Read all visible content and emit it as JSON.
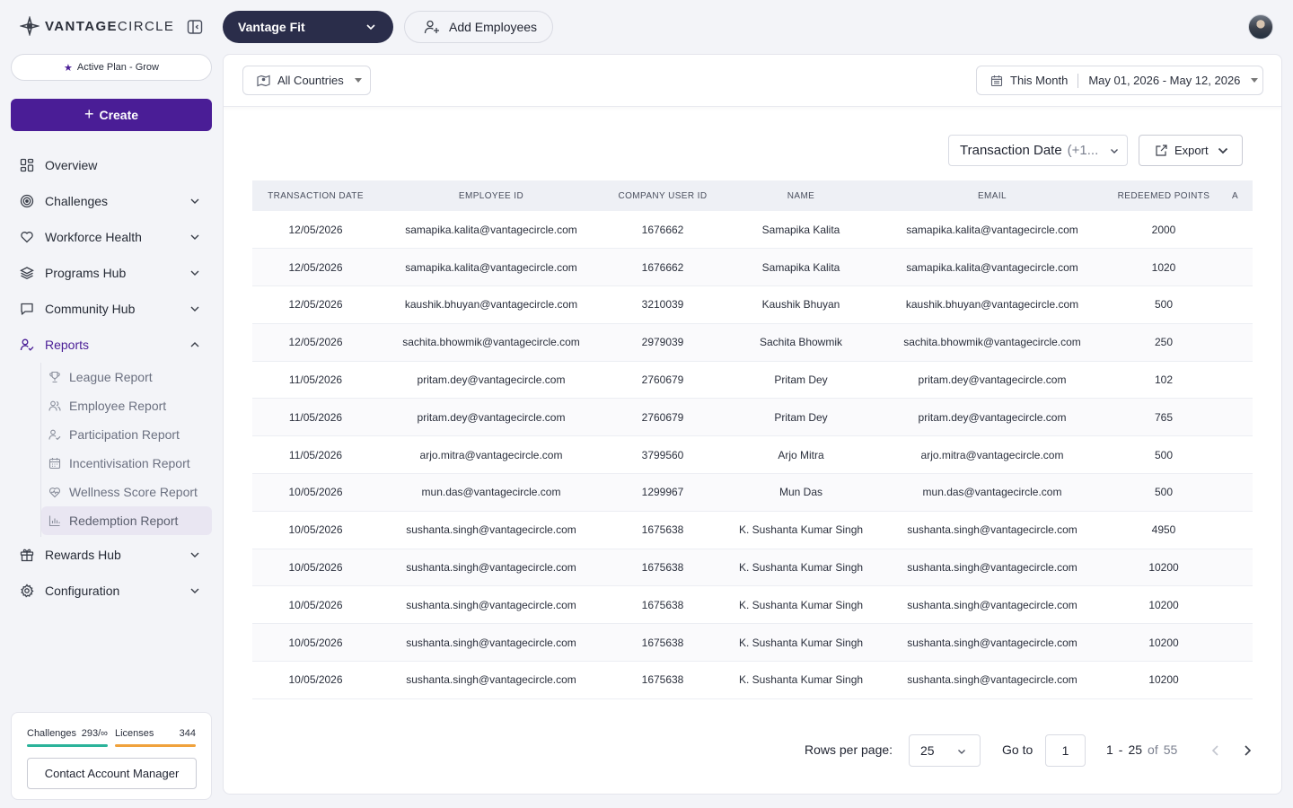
{
  "brand": {
    "logo_text_bold": "VANTAGE",
    "logo_text_light": "CIRCLE"
  },
  "sidebar": {
    "plan_label": "Active Plan - Grow",
    "create_label": "Create",
    "nav": [
      {
        "label": "Overview",
        "icon": "grid-icon"
      },
      {
        "label": "Challenges",
        "icon": "target-icon"
      },
      {
        "label": "Workforce Health",
        "icon": "heart-icon"
      },
      {
        "label": "Programs Hub",
        "icon": "layers-icon"
      },
      {
        "label": "Community Hub",
        "icon": "chat-icon"
      },
      {
        "label": "Reports",
        "icon": "user-check-icon"
      },
      {
        "label": "Rewards Hub",
        "icon": "gift-icon"
      },
      {
        "label": "Configuration",
        "icon": "gear-icon"
      }
    ],
    "reports_sub": [
      {
        "label": "League Report",
        "icon": "trophy-icon"
      },
      {
        "label": "Employee Report",
        "icon": "users-icon"
      },
      {
        "label": "Participation Report",
        "icon": "user-check-icon"
      },
      {
        "label": "Incentivisation Report",
        "icon": "calendar-icon"
      },
      {
        "label": "Wellness Score Report",
        "icon": "heart-pulse-icon"
      },
      {
        "label": "Redemption Report",
        "icon": "bar-chart-icon"
      }
    ],
    "usage": {
      "challenges_label": "Challenges",
      "challenges_value": "293/∞",
      "challenges_color": "#2bb39a",
      "licenses_label": "Licenses",
      "licenses_value": "344",
      "licenses_color": "#f0a23c"
    },
    "contact_label": "Contact Account Manager"
  },
  "topbar": {
    "app_name": "Vantage Fit",
    "add_employees_label": "Add Employees"
  },
  "filters": {
    "country_label": "All Countries",
    "period_label": "This Month",
    "date_range": "May 01, 2026 - May 12, 2026"
  },
  "toolbar": {
    "columns_label": "Transaction Date",
    "columns_extra": "(+1...",
    "export_label": "Export"
  },
  "table": {
    "columns": [
      "TRANSACTION DATE",
      "EMPLOYEE ID",
      "COMPANY USER ID",
      "NAME",
      "EMAIL",
      "REDEEMED POINTS",
      "A"
    ],
    "rows": [
      [
        "12/05/2026",
        "samapika.kalita@vantagecircle.com",
        "1676662",
        "Samapika Kalita",
        "samapika.kalita@vantagecircle.com",
        "2000"
      ],
      [
        "12/05/2026",
        "samapika.kalita@vantagecircle.com",
        "1676662",
        "Samapika Kalita",
        "samapika.kalita@vantagecircle.com",
        "1020"
      ],
      [
        "12/05/2026",
        "kaushik.bhuyan@vantagecircle.com",
        "3210039",
        "Kaushik Bhuyan",
        "kaushik.bhuyan@vantagecircle.com",
        "500"
      ],
      [
        "12/05/2026",
        "sachita.bhowmik@vantagecircle.com",
        "2979039",
        "Sachita Bhowmik",
        "sachita.bhowmik@vantagecircle.com",
        "250"
      ],
      [
        "11/05/2026",
        "pritam.dey@vantagecircle.com",
        "2760679",
        "Pritam Dey",
        "pritam.dey@vantagecircle.com",
        "102"
      ],
      [
        "11/05/2026",
        "pritam.dey@vantagecircle.com",
        "2760679",
        "Pritam Dey",
        "pritam.dey@vantagecircle.com",
        "765"
      ],
      [
        "11/05/2026",
        "arjo.mitra@vantagecircle.com",
        "3799560",
        "Arjo Mitra",
        "arjo.mitra@vantagecircle.com",
        "500"
      ],
      [
        "10/05/2026",
        "mun.das@vantagecircle.com",
        "1299967",
        "Mun Das",
        "mun.das@vantagecircle.com",
        "500"
      ],
      [
        "10/05/2026",
        "sushanta.singh@vantagecircle.com",
        "1675638",
        "K. Sushanta Kumar Singh",
        "sushanta.singh@vantagecircle.com",
        "4950"
      ],
      [
        "10/05/2026",
        "sushanta.singh@vantagecircle.com",
        "1675638",
        "K. Sushanta Kumar Singh",
        "sushanta.singh@vantagecircle.com",
        "10200"
      ],
      [
        "10/05/2026",
        "sushanta.singh@vantagecircle.com",
        "1675638",
        "K. Sushanta Kumar Singh",
        "sushanta.singh@vantagecircle.com",
        "10200"
      ],
      [
        "10/05/2026",
        "sushanta.singh@vantagecircle.com",
        "1675638",
        "K. Sushanta Kumar Singh",
        "sushanta.singh@vantagecircle.com",
        "10200"
      ],
      [
        "10/05/2026",
        "sushanta.singh@vantagecircle.com",
        "1675638",
        "K. Sushanta Kumar Singh",
        "sushanta.singh@vantagecircle.com",
        "10200"
      ]
    ]
  },
  "pagination": {
    "rows_per_page_label": "Rows per page:",
    "rows_per_page_value": "25",
    "goto_label": "Go to",
    "goto_value": "1",
    "range_start": "1",
    "range_dash": "-",
    "range_end": "25",
    "of_label": "of",
    "total": "55"
  },
  "colors": {
    "primary": "#4a1d96",
    "app_select_bg": "#2a2d4a",
    "surface": "#f3f4f8"
  }
}
